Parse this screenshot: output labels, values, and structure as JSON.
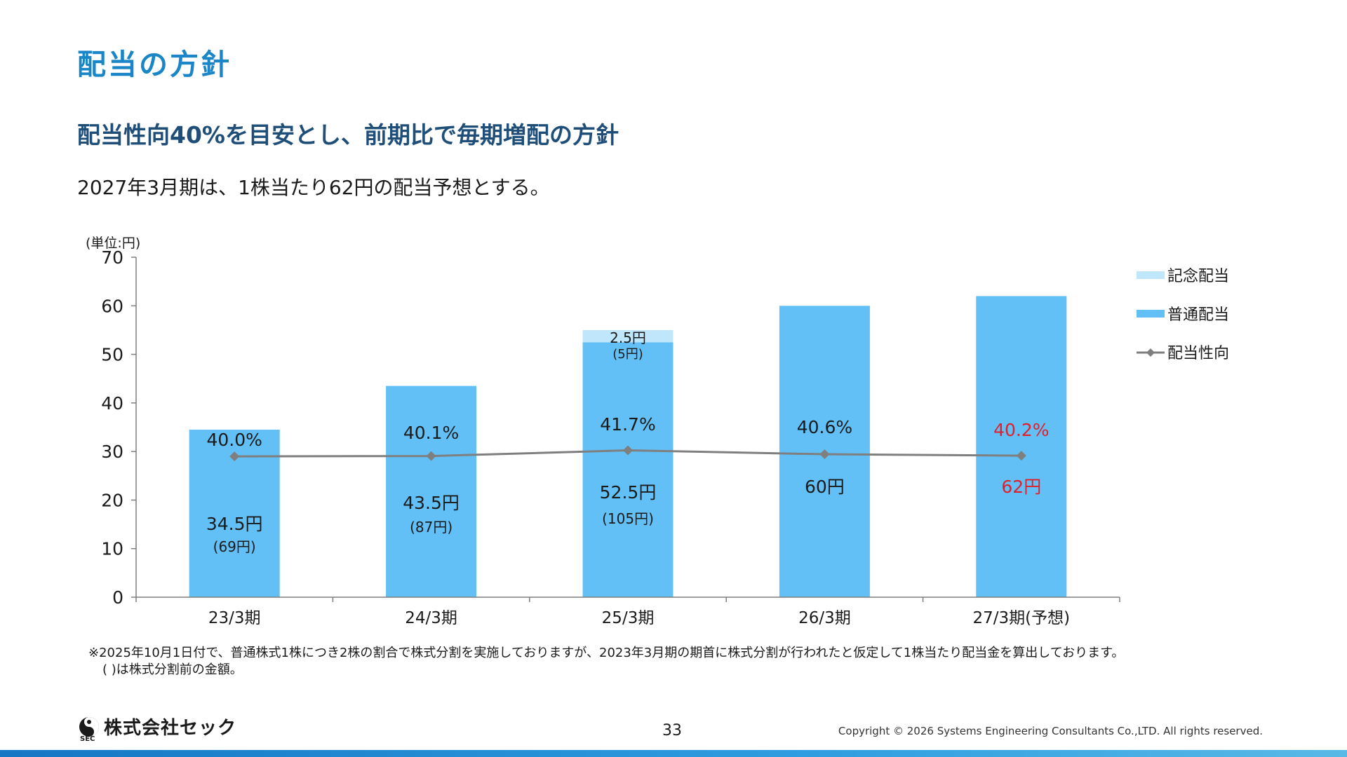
{
  "page_title": "配当の方針",
  "headline": "配当性向40%を目安とし、前期比で毎期増配の方針",
  "subline": "2027年3月期は、1株当たり62円の配当予想とする。",
  "notes": [
    "※2025年10月1日付で、普通株式1株につき2株の割合で株式分割を実施しておりますが、2023年3月期の期首に株式分割が行われたと仮定して1株当たり配当金を算出しております。",
    "( )は株式分割前の金額。"
  ],
  "footer": {
    "logo_text": "株式会社セック",
    "logo_sub": "SEC",
    "page_number": "33",
    "copyright": "Copyright © 2026 Systems Engineering Consultants Co.,LTD. All rights reserved."
  },
  "colors": {
    "regular_bar": "#62c0f6",
    "commemorative_bar": "#bfe6fb",
    "payout_line": "#7f7f7f",
    "forecast_text": "#e0202a",
    "title": "#1a86c8",
    "headline": "#1f4e79"
  },
  "chart_data": {
    "type": "bar",
    "unit_label": "(単位:円)",
    "categories": [
      "23/3期",
      "24/3期",
      "25/3期",
      "26/3期",
      "27/3期(予想)"
    ],
    "ylim": [
      0,
      70
    ],
    "yticks": [
      "0",
      "10",
      "20",
      "30",
      "40",
      "50",
      "60",
      "70"
    ],
    "series": [
      {
        "name": "普通配当",
        "values": [
          34.5,
          43.5,
          52.5,
          60,
          62
        ],
        "labels": [
          "34.5円",
          "43.5円",
          "52.5円",
          "60円",
          "62円"
        ],
        "pre_split_labels": [
          "(69円)",
          "(87円)",
          "(105円)",
          "",
          ""
        ]
      },
      {
        "name": "記念配当",
        "values": [
          0,
          0,
          2.5,
          0,
          0
        ],
        "labels": [
          "",
          "",
          "2.5円",
          "",
          ""
        ],
        "pre_split_labels": [
          "",
          "",
          "(5円)",
          "",
          ""
        ]
      },
      {
        "name": "配当性向",
        "type": "line",
        "values": [
          40.0,
          40.1,
          41.7,
          40.6,
          40.2
        ],
        "labels": [
          "40.0%",
          "40.1%",
          "41.7%",
          "40.6%",
          "40.2%"
        ]
      }
    ],
    "legend": [
      "記念配当",
      "普通配当",
      "配当性向"
    ],
    "legend_position": "right",
    "forecast_index": 4
  }
}
